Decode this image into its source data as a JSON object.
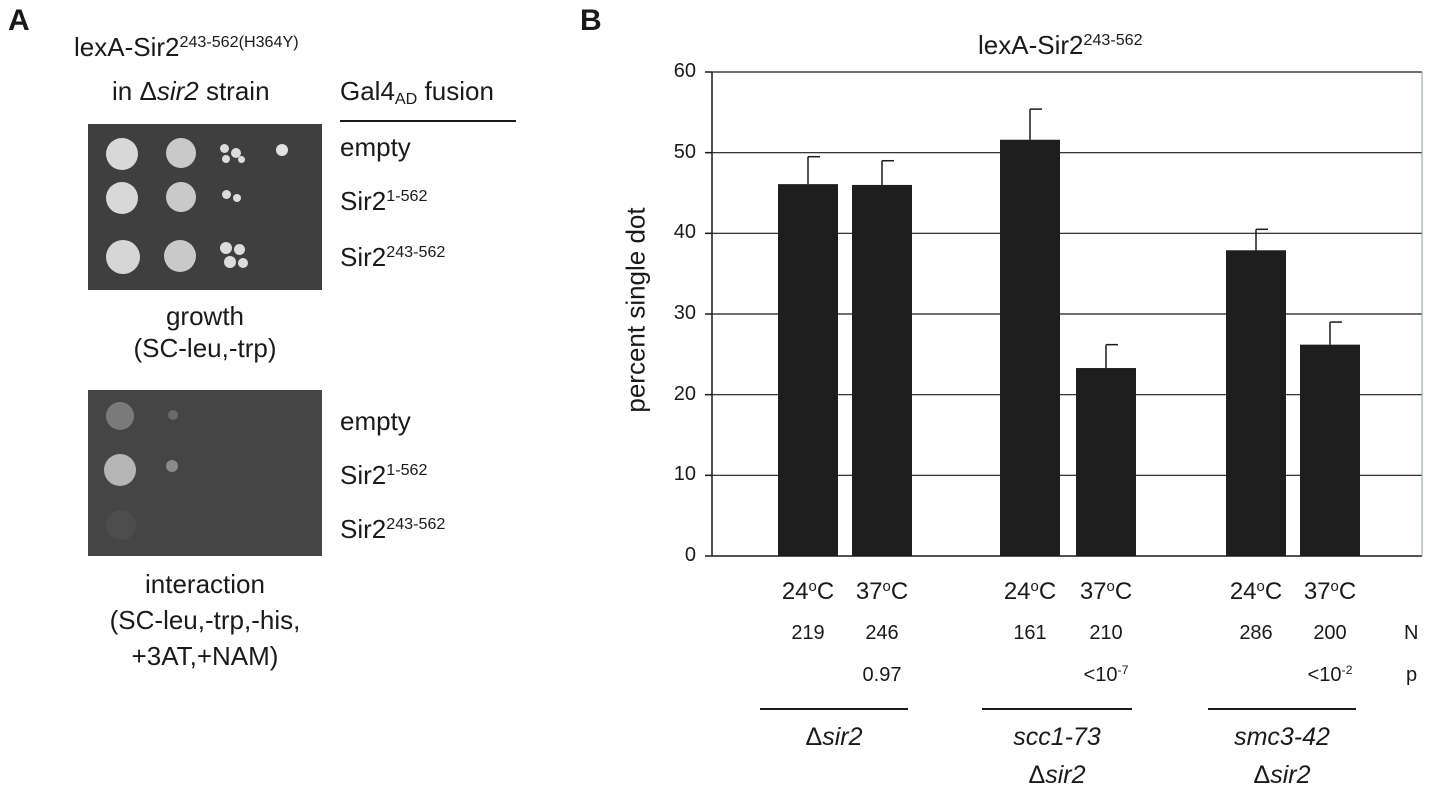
{
  "panel_a": {
    "letter": "A",
    "construct": "lexA-Sir2",
    "construct_sup": "243-562(H364Y)",
    "strain_prefix": "in Δ",
    "strain_gene": "sir2",
    "strain_suffix": " strain",
    "fusion_main": "Gal4",
    "fusion_sub": "AD",
    "fusion_suffix": " fusion",
    "rows": [
      {
        "base": "empty",
        "sup": ""
      },
      {
        "base": "Sir2",
        "sup": "1-562"
      },
      {
        "base": "Sir2",
        "sup": "243-562"
      }
    ],
    "growth_caption": [
      "growth",
      "(SC-leu,-trp)"
    ],
    "interaction_caption": [
      "interaction",
      "(SC-leu,-trp,-his,",
      "+3AT,+NAM)"
    ]
  },
  "panel_b": {
    "letter": "B",
    "n_label": "N",
    "p_label": "p",
    "groups": [
      {
        "strain": "Δsir2",
        "strain_second": ""
      },
      {
        "strain": "scc1-73",
        "strain_second": "Δsir2"
      },
      {
        "strain": "smc3-42",
        "strain_second": "Δsir2"
      }
    ],
    "bars": [
      {
        "temp": "24",
        "unit": "C",
        "n": "219",
        "p": ""
      },
      {
        "temp": "37",
        "unit": "C",
        "n": "246",
        "p": "0.97"
      },
      {
        "temp": "24",
        "unit": "C",
        "n": "161",
        "p": ""
      },
      {
        "temp": "37",
        "unit": "C",
        "n": "210",
        "p": "<10",
        "p_exp": "-7"
      },
      {
        "temp": "24",
        "unit": "C",
        "n": "286",
        "p": ""
      },
      {
        "temp": "37",
        "unit": "C",
        "n": "200",
        "p": "<10",
        "p_exp": "-2"
      }
    ]
  },
  "chart_data": {
    "type": "bar",
    "title": "lexA-Sir2",
    "title_sup": "243-562",
    "ylabel": "percent single dot",
    "ylim": [
      0,
      60
    ],
    "yticks": [
      0,
      10,
      20,
      30,
      40,
      50,
      60
    ],
    "grid": true,
    "categories": [
      "Δsir2 24°C",
      "Δsir2 37°C",
      "scc1-73 Δsir2 24°C",
      "scc1-73 Δsir2 37°C",
      "smc3-42 Δsir2 24°C",
      "smc3-42 Δsir2 37°C"
    ],
    "values": [
      46.1,
      46.0,
      51.6,
      23.3,
      37.9,
      26.2
    ],
    "error_upper": [
      3.4,
      3.0,
      3.8,
      2.9,
      2.6,
      2.8
    ],
    "bar_color": "#1e1e1e"
  }
}
